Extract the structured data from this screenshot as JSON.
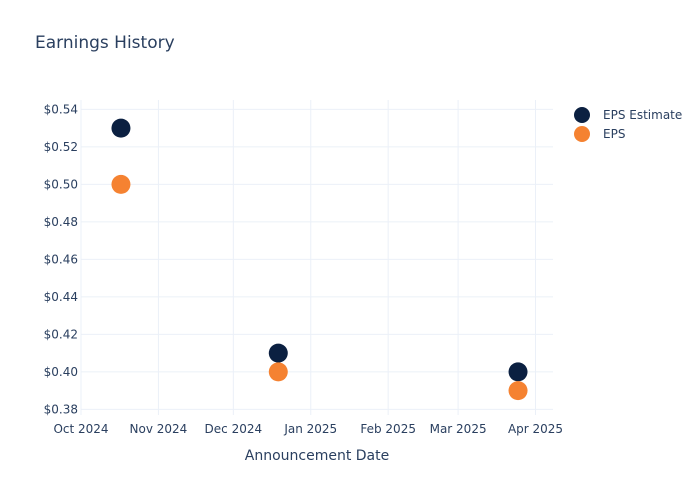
{
  "chart_data": {
    "type": "scatter",
    "title": "Earnings History",
    "xlabel": "Announcement Date",
    "ylabel": "",
    "x_ticks": [
      "Oct 2024",
      "Nov 2024",
      "Dec 2024",
      "Jan 2025",
      "Feb 2025",
      "Mar 2025",
      "Apr 2025"
    ],
    "y_ticks": [
      "$0.38",
      "$0.40",
      "$0.42",
      "$0.44",
      "$0.46",
      "$0.48",
      "$0.50",
      "$0.52",
      "$0.54"
    ],
    "ylim": [
      0.377,
      0.545
    ],
    "xlim": [
      "2024-10-01",
      "2025-04-08"
    ],
    "grid": true,
    "legend_position": "top-right",
    "series": [
      {
        "name": "EPS Estimate",
        "color": "#0b2041",
        "points": [
          {
            "x": "2024-10-17",
            "y": 0.53
          },
          {
            "x": "2024-12-19",
            "y": 0.41
          },
          {
            "x": "2025-03-25",
            "y": 0.4
          }
        ]
      },
      {
        "name": "EPS",
        "color": "#f58231",
        "points": [
          {
            "x": "2024-10-17",
            "y": 0.5
          },
          {
            "x": "2024-12-19",
            "y": 0.4
          },
          {
            "x": "2025-03-25",
            "y": 0.39
          }
        ]
      }
    ]
  }
}
